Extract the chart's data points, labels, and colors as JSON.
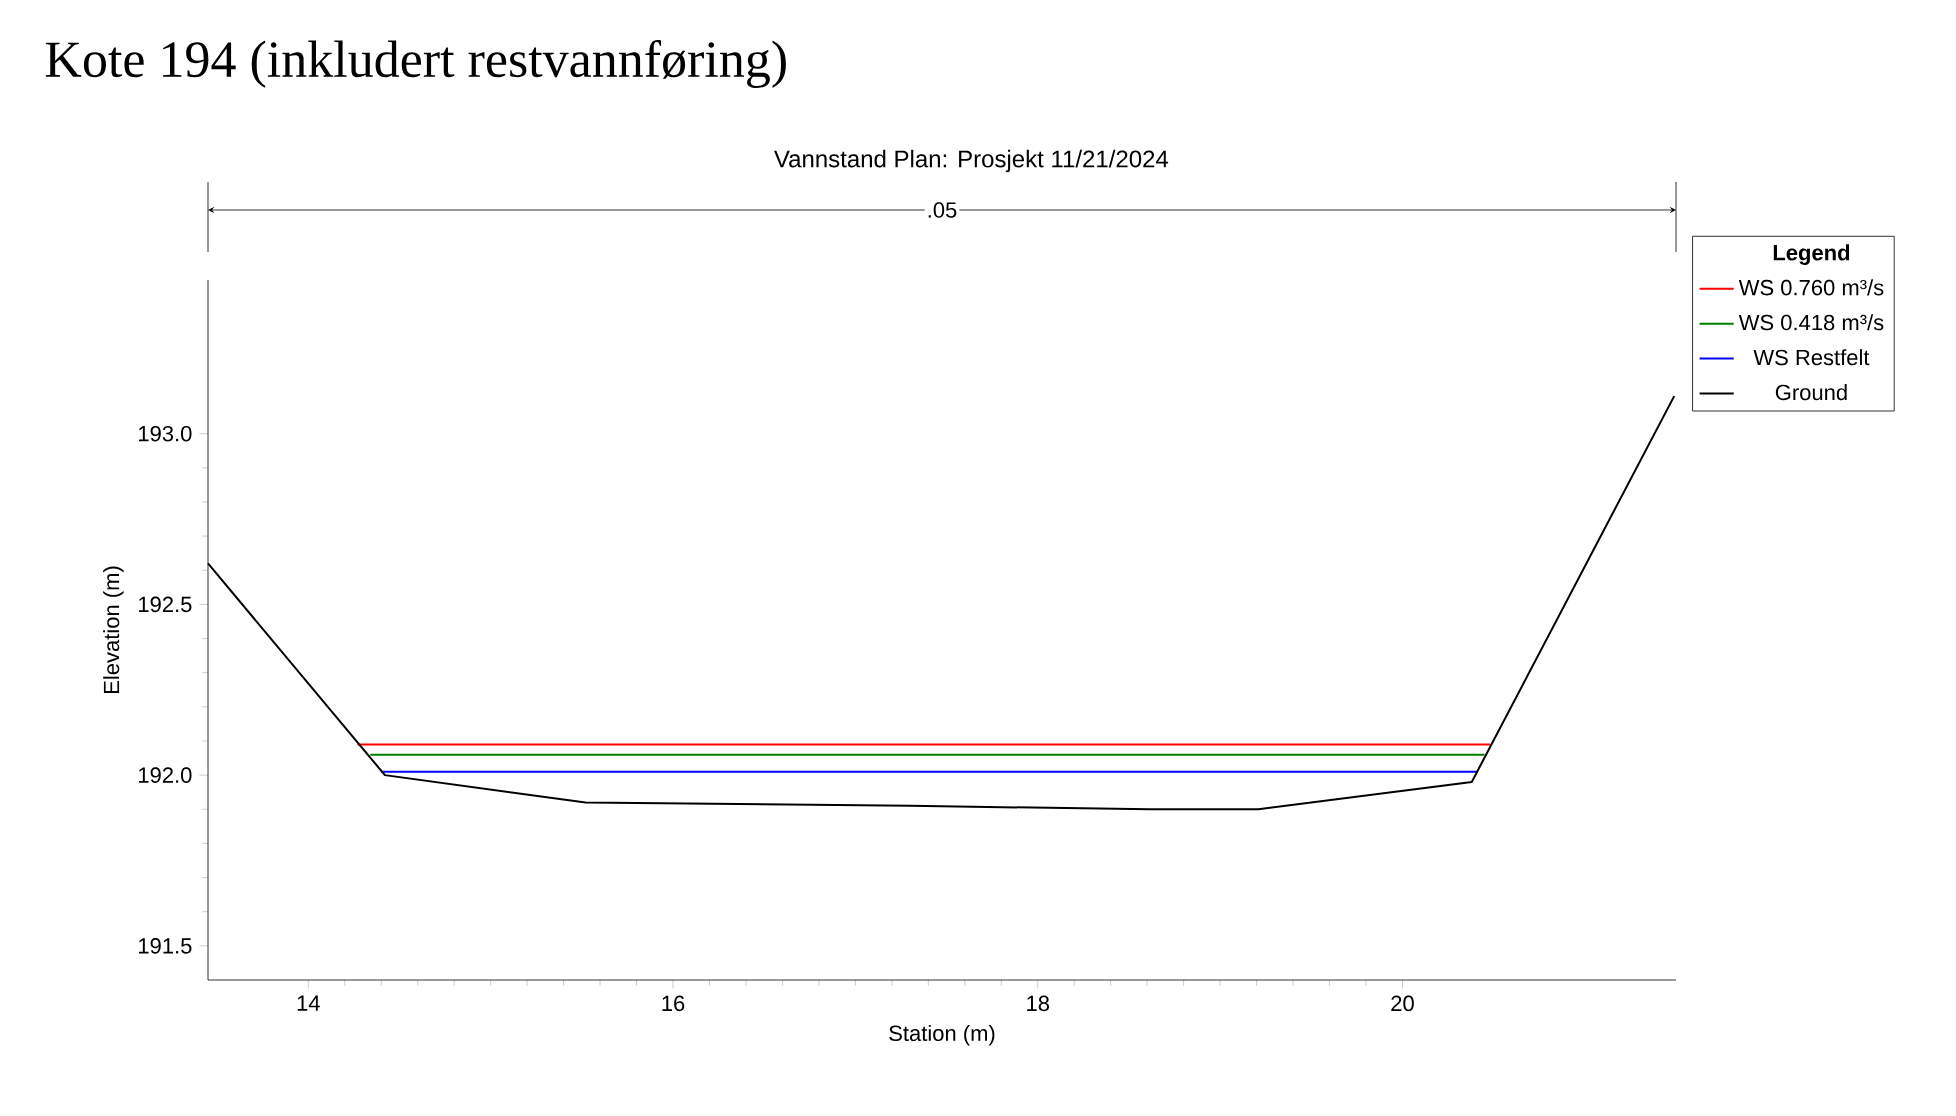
{
  "chart_data": {
    "type": "line",
    "title": "Kote 194 (inkludert restvannføring)",
    "subtitle": "Vannstand      Plan: Prosjekt      11/21/2024",
    "xlabel": "Station (m)",
    "ylabel": "Elevation (m)",
    "legend_title": "Legend",
    "annotations": [
      ".05"
    ],
    "xlim": [
      13.45,
      21.5
    ],
    "ylim": [
      191.4,
      193.45
    ],
    "xticks": [
      14,
      16,
      18,
      20
    ],
    "yticks": [
      {
        "value": 191.5,
        "label": "191.5"
      },
      {
        "value": 192,
        "label": "192.0"
      },
      {
        "value": 192.5,
        "label": "192.5"
      },
      {
        "value": 193,
        "label": "193.0"
      }
    ],
    "legend": "top right",
    "line_style": "solid",
    "series": [
      {
        "name": "WS 0.760 m³/s",
        "color": "#ff0000",
        "x": [
          14.27,
          20.48
        ],
        "values": [
          192.09,
          192.09
        ]
      },
      {
        "name": "WS 0.418 m³/s",
        "color": "#008000",
        "x": [
          14.34,
          20.45
        ],
        "values": [
          192.06,
          192.06
        ]
      },
      {
        "name": "WS Restfelt",
        "color": "#0000ff",
        "x": [
          14.4,
          20.41
        ],
        "values": [
          192.01,
          192.01
        ]
      },
      {
        "name": "Ground",
        "color": "#000000",
        "x": [
          13.45,
          14.42,
          15.52,
          17.3,
          18.61,
          19.21,
          20.38,
          21.49
        ],
        "values": [
          192.62,
          192.0,
          191.92,
          191.91,
          191.9,
          191.9,
          191.98,
          193.11
        ]
      }
    ]
  }
}
